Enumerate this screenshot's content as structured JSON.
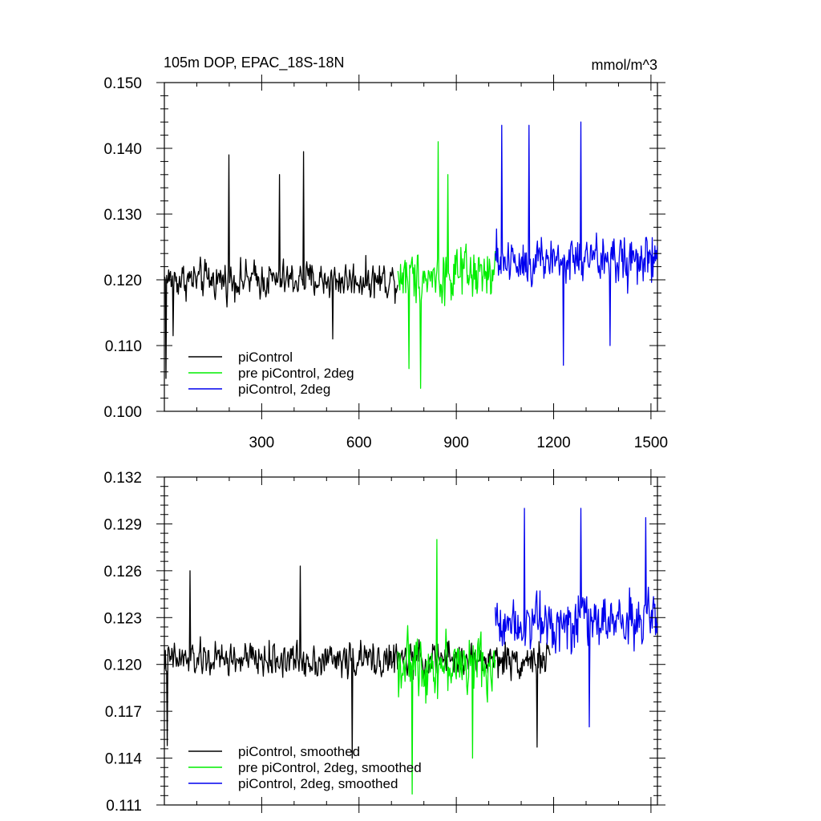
{
  "chart_data": [
    {
      "type": "line",
      "title": "105m DOP, EPAC_18S-18N",
      "units": "mmol/m^3",
      "xlim": [
        0,
        1520
      ],
      "ylim": [
        0.1,
        0.15
      ],
      "x_ticks": [
        300,
        600,
        900,
        1200,
        1500
      ],
      "x_tick_labels": [
        "300",
        "600",
        "900",
        "1200",
        "1500"
      ],
      "y_ticks": [
        0.1,
        0.11,
        0.12,
        0.13,
        0.14,
        0.15
      ],
      "y_tick_labels": [
        "0.100",
        "0.110",
        "0.120",
        "0.130",
        "0.140",
        "0.150"
      ],
      "grid": false,
      "legend_position": "bottom-left",
      "series": [
        {
          "name": "piControl",
          "color": "#000000",
          "x_range": [
            1,
            720
          ],
          "mean": 0.12,
          "amplitude": 0.0045,
          "notable_points": [
            [
              5,
              0.105
            ],
            [
              27,
              0.1115
            ],
            [
              200,
              0.139
            ],
            [
              355,
              0.136
            ],
            [
              430,
              0.1395
            ],
            [
              520,
              0.111
            ]
          ]
        },
        {
          "name": "pre piControl, 2deg",
          "color": "#00ee00",
          "x_range": [
            720,
            1020
          ],
          "mean": 0.1205,
          "amplitude": 0.0065,
          "notable_points": [
            [
              755,
              0.1065
            ],
            [
              790,
              0.1035
            ],
            [
              845,
              0.141
            ],
            [
              875,
              0.136
            ]
          ]
        },
        {
          "name": "piControl, 2deg",
          "color": "#0000ee",
          "x_range": [
            1020,
            1520
          ],
          "mean": 0.123,
          "amplitude": 0.0065,
          "notable_points": [
            [
              1040,
              0.1435
            ],
            [
              1125,
              0.1435
            ],
            [
              1285,
              0.144
            ],
            [
              1230,
              0.107
            ],
            [
              1375,
              0.11
            ]
          ]
        }
      ]
    },
    {
      "type": "line",
      "xlim": [
        0,
        1520
      ],
      "ylim": [
        0.111,
        0.132
      ],
      "x_ticks": [
        300,
        600,
        900,
        1200,
        1500
      ],
      "y_ticks": [
        0.111,
        0.114,
        0.117,
        0.12,
        0.123,
        0.126,
        0.129,
        0.132
      ],
      "y_tick_labels": [
        "0.111",
        "0.114",
        "0.117",
        "0.120",
        "0.123",
        "0.126",
        "0.129",
        "0.132"
      ],
      "grid": false,
      "legend_position": "bottom-left",
      "series": [
        {
          "name": "piControl, smoothed",
          "color": "#000000",
          "x_range": [
            1,
            1190
          ],
          "mean": 0.1203,
          "amplitude": 0.0018,
          "notable_points": [
            [
              10,
              0.1148
            ],
            [
              80,
              0.126
            ],
            [
              420,
              0.1263
            ],
            [
              580,
              0.114
            ],
            [
              1150,
              0.1147
            ]
          ]
        },
        {
          "name": "pre piControl, 2deg, smoothed",
          "color": "#00ee00",
          "x_range": [
            720,
            1020
          ],
          "mean": 0.12,
          "amplitude": 0.003,
          "notable_points": [
            [
              765,
              0.1117
            ],
            [
              840,
              0.128
            ],
            [
              950,
              0.114
            ]
          ]
        },
        {
          "name": "piControl, 2deg, smoothed",
          "color": "#0000ee",
          "x_range": [
            1020,
            1520
          ],
          "mean": 0.1228,
          "amplitude": 0.0028,
          "notable_points": [
            [
              1110,
              0.13
            ],
            [
              1285,
              0.13
            ],
            [
              1485,
              0.1294
            ],
            [
              1310,
              0.116
            ]
          ]
        }
      ]
    }
  ]
}
